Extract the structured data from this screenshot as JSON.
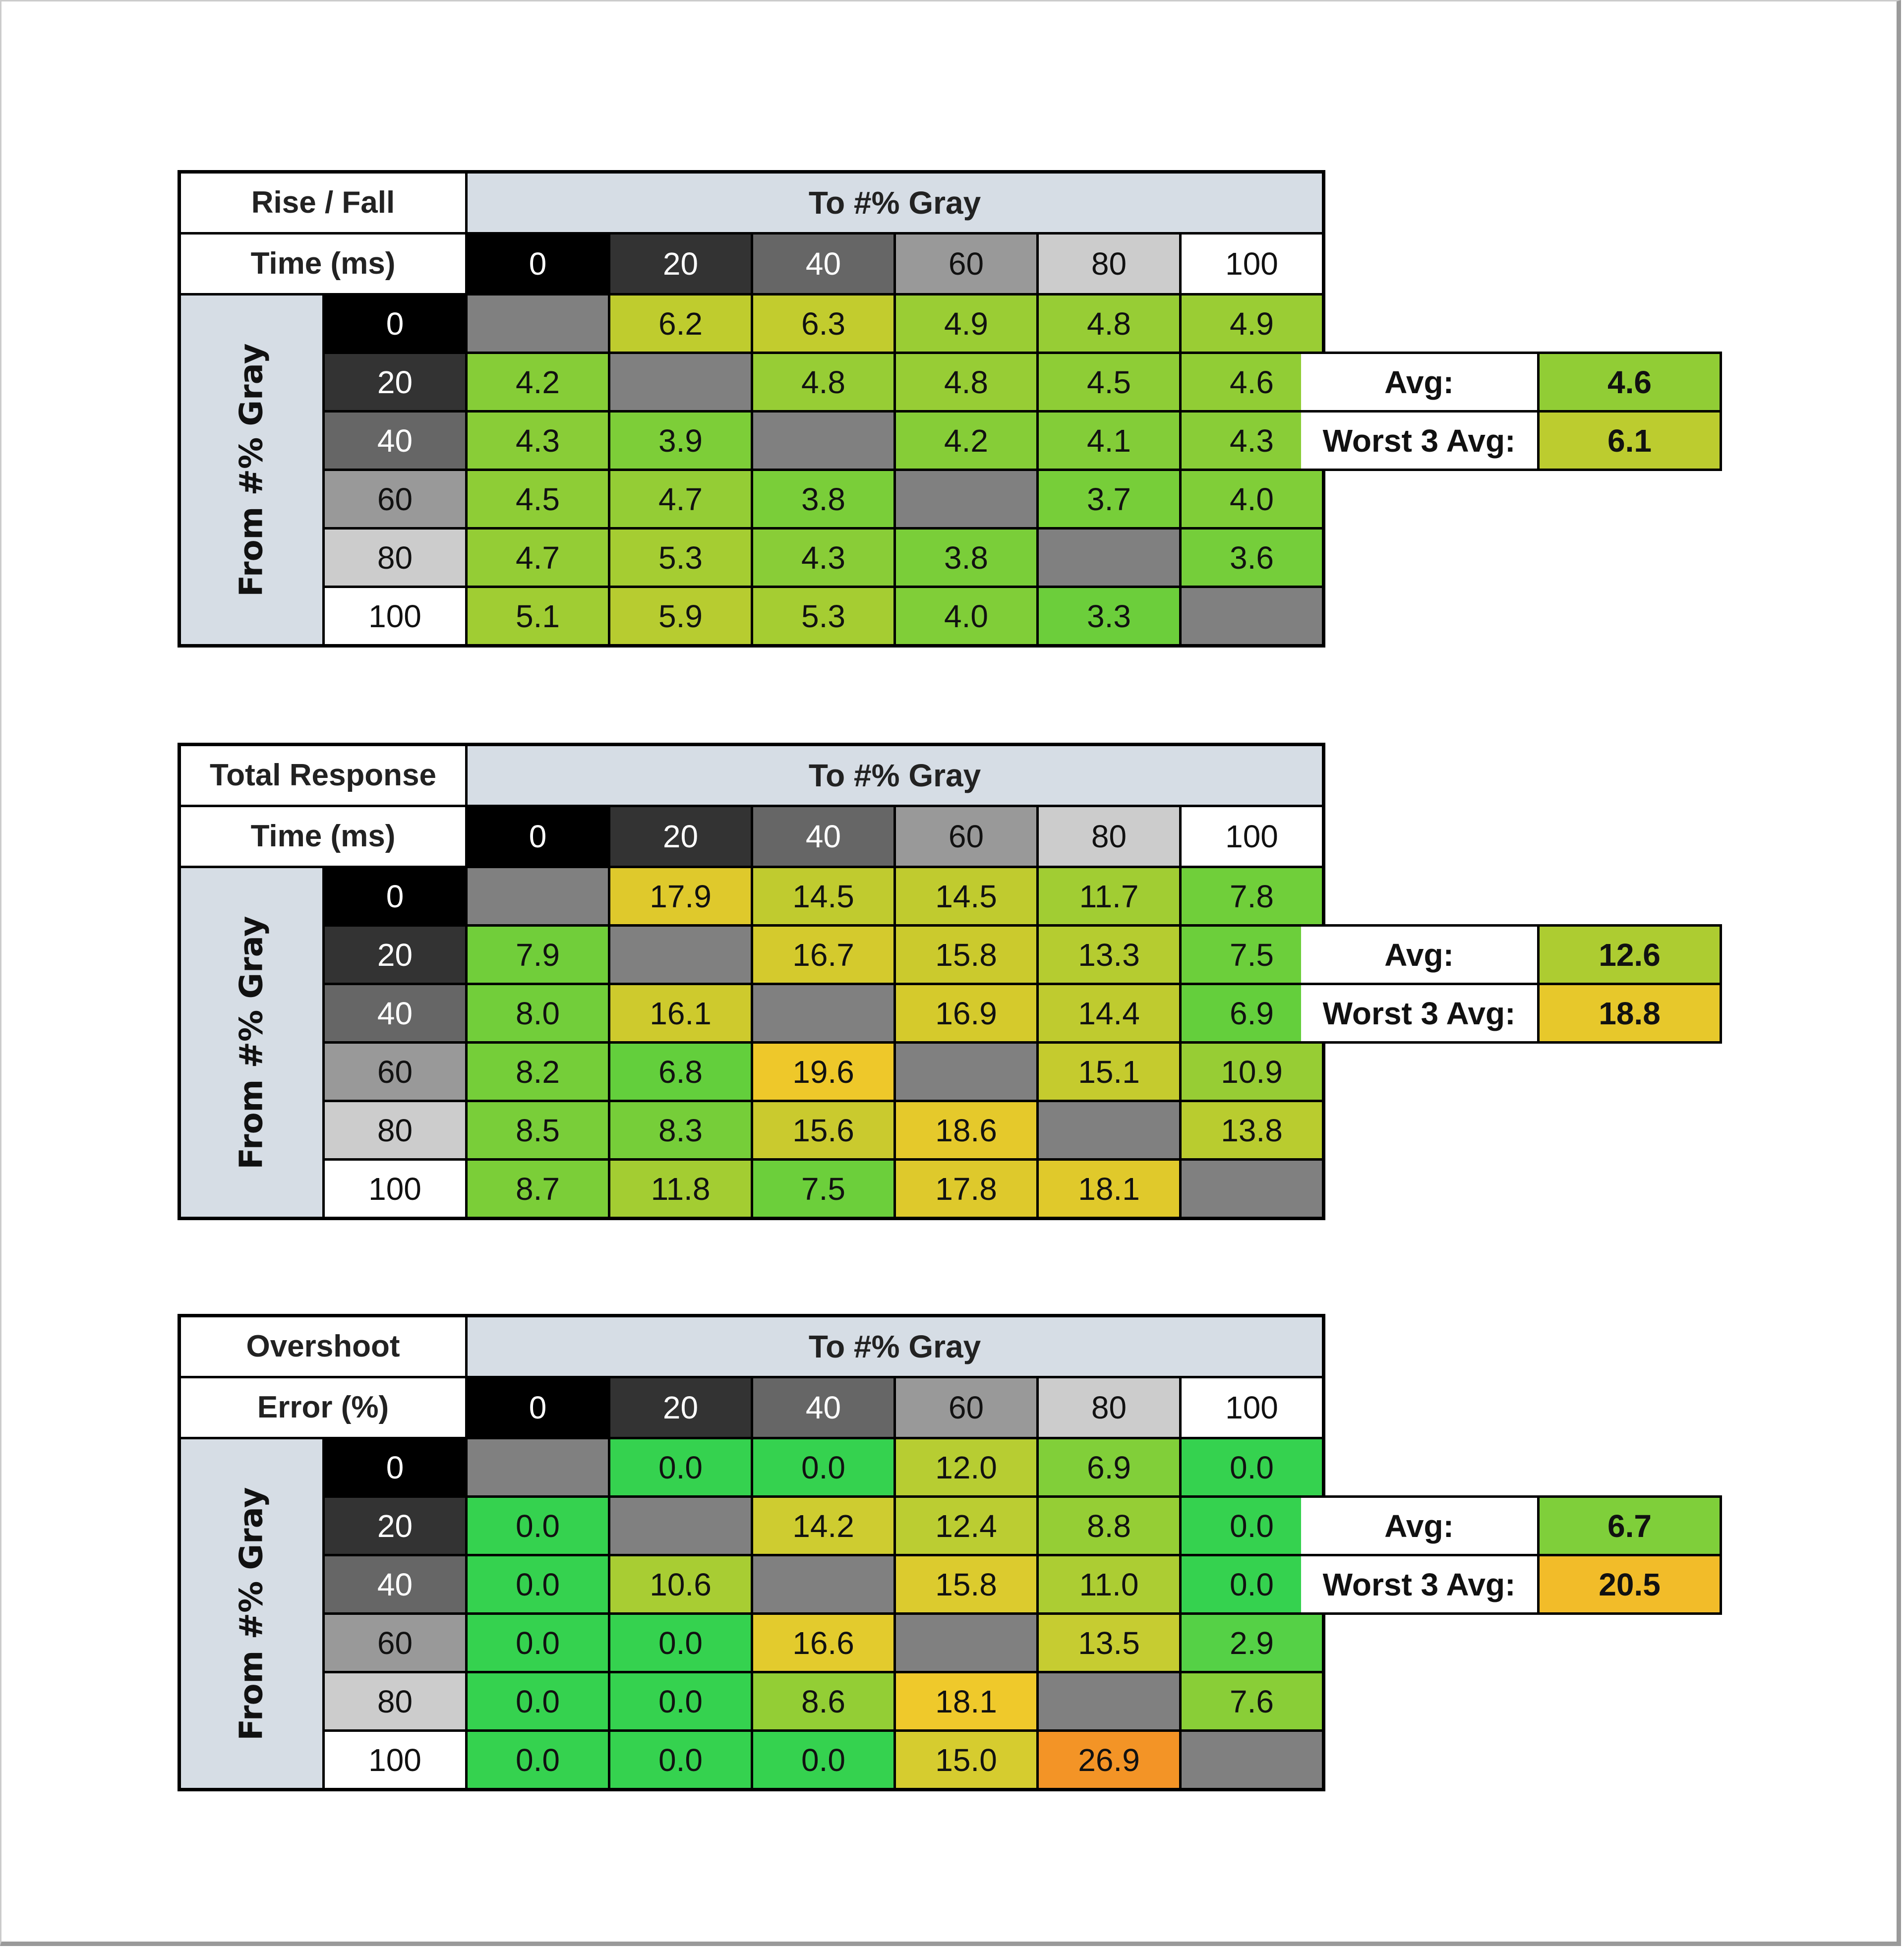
{
  "axis": {
    "to_label": "To #% Gray",
    "from_label": "From #% Gray",
    "levels": [
      "0",
      "20",
      "40",
      "60",
      "80",
      "100"
    ],
    "level_colors": [
      "#000000",
      "#333333",
      "#666666",
      "#999999",
      "#cccccc",
      "#ffffff"
    ],
    "level_text_colors": [
      "#ffffff",
      "#ffffff",
      "#ffffff",
      "#111111",
      "#111111",
      "#111111"
    ],
    "empty_cell_color": "#808080"
  },
  "avg_label": "Avg:",
  "worst_label": "Worst 3 Avg:",
  "chart_data": [
    {
      "type": "heatmap",
      "title_line1": "Rise / Fall",
      "title_line2": "Time (ms)",
      "rows": [
        [
          null,
          "6.2",
          "6.3",
          "4.9",
          "4.8",
          "4.9"
        ],
        [
          "4.2",
          null,
          "4.8",
          "4.8",
          "4.5",
          "4.6"
        ],
        [
          "4.3",
          "3.9",
          null,
          "4.2",
          "4.1",
          "4.3"
        ],
        [
          "4.5",
          "4.7",
          "3.8",
          null,
          "3.7",
          "4.0"
        ],
        [
          "4.7",
          "5.3",
          "4.3",
          "3.8",
          null,
          "3.6"
        ],
        [
          "5.1",
          "5.9",
          "5.3",
          "4.0",
          "3.3",
          null
        ]
      ],
      "avg": "4.6",
      "worst3_avg": "6.1",
      "color_scale": [
        {
          "value": 3.3,
          "color": "#6cce3b"
        },
        {
          "value": 6.3,
          "color": "#c2cc2e"
        }
      ]
    },
    {
      "type": "heatmap",
      "title_line1": "Total Response",
      "title_line2": "Time (ms)",
      "rows": [
        [
          null,
          "17.9",
          "14.5",
          "14.5",
          "11.7",
          "7.8"
        ],
        [
          "7.9",
          null,
          "16.7",
          "15.8",
          "13.3",
          "7.5"
        ],
        [
          "8.0",
          "16.1",
          null,
          "16.9",
          "14.4",
          "6.9"
        ],
        [
          "8.2",
          "6.8",
          "19.6",
          null,
          "15.1",
          "10.9"
        ],
        [
          "8.5",
          "8.3",
          "15.6",
          "18.6",
          null,
          "13.8"
        ],
        [
          "8.7",
          "11.8",
          "7.5",
          "17.8",
          "18.1",
          null
        ]
      ],
      "avg": "12.6",
      "worst3_avg": "18.8",
      "color_scale": [
        {
          "value": 6.8,
          "color": "#63cf3c"
        },
        {
          "value": 13,
          "color": "#b2cc30"
        },
        {
          "value": 19.6,
          "color": "#eec82a"
        }
      ]
    },
    {
      "type": "heatmap",
      "title_line1": "Overshoot",
      "title_line2": "Error (%)",
      "rows": [
        [
          null,
          "0.0",
          "0.0",
          "12.0",
          "6.9",
          "0.0"
        ],
        [
          "0.0",
          null,
          "14.2",
          "12.4",
          "8.8",
          "0.0"
        ],
        [
          "0.0",
          "10.6",
          null,
          "15.8",
          "11.0",
          "0.0"
        ],
        [
          "0.0",
          "0.0",
          "16.6",
          null,
          "13.5",
          "2.9"
        ],
        [
          "0.0",
          "0.0",
          "8.6",
          "18.1",
          null,
          "7.6"
        ],
        [
          "0.0",
          "0.0",
          "0.0",
          "15.0",
          "26.9",
          null
        ]
      ],
      "avg": "6.7",
      "worst3_avg": "20.5",
      "color_scale": [
        {
          "value": 0,
          "color": "#35d24f"
        },
        {
          "value": 8,
          "color": "#8dce36"
        },
        {
          "value": 15,
          "color": "#d6cc2f"
        },
        {
          "value": 18.5,
          "color": "#f2c92a"
        },
        {
          "value": 26.9,
          "color": "#f39426"
        }
      ]
    }
  ]
}
